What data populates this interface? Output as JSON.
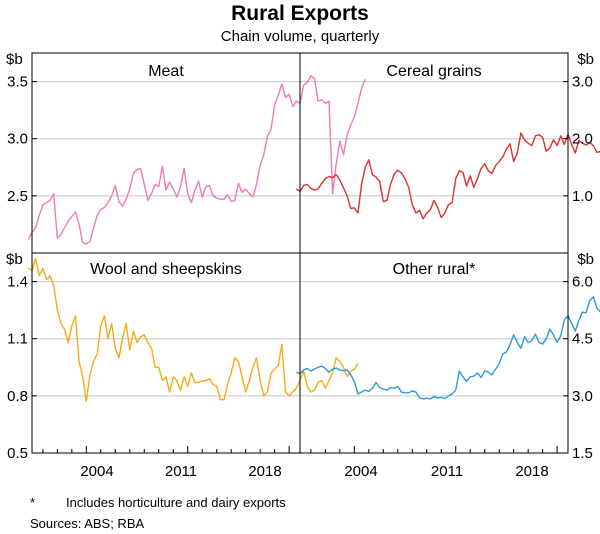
{
  "title": "Rural Exports",
  "subtitle": "Chain volume, quarterly",
  "footnote_marker": "*",
  "footnote": "Includes horticulture and dairy exports",
  "sources": "Sources: ABS; RBA",
  "x_tick_labels": [
    "2004",
    "2011",
    "2018"
  ],
  "colors": {
    "meat": "#f07ab8",
    "cereal": "#e0312e",
    "wool": "#f5aa16",
    "other": "#2b9bd6"
  },
  "chart_data": [
    {
      "type": "line",
      "title": "Meat",
      "unit": "$b",
      "axis_side": "left",
      "ylim": [
        2.0,
        3.75
      ],
      "yticks": [
        2.5,
        3.0,
        3.5
      ],
      "ytick_labels": [
        "2.5",
        "3.0",
        "3.5"
      ],
      "x_start": 2000.0,
      "x_step": 0.25,
      "series": [
        {
          "values": [
            2.12,
            2.18,
            2.22,
            2.33,
            2.42,
            2.44,
            2.46,
            2.52,
            2.13,
            2.16,
            2.22,
            2.28,
            2.32,
            2.36,
            2.25,
            2.09,
            2.08,
            2.1,
            2.22,
            2.33,
            2.38,
            2.4,
            2.44,
            2.5,
            2.59,
            2.45,
            2.41,
            2.47,
            2.56,
            2.7,
            2.73,
            2.74,
            2.6,
            2.46,
            2.52,
            2.6,
            2.58,
            2.76,
            2.55,
            2.62,
            2.56,
            2.49,
            2.58,
            2.74,
            2.52,
            2.44,
            2.55,
            2.63,
            2.49,
            2.58,
            2.59,
            2.5,
            2.48,
            2.47,
            2.47,
            2.51,
            2.45,
            2.46,
            2.61,
            2.53,
            2.56,
            2.52,
            2.49,
            2.6,
            2.77,
            2.86,
            3.02,
            3.08,
            3.3,
            3.38,
            3.48,
            3.36,
            3.39,
            3.28,
            3.33,
            3.31,
            3.47,
            3.49,
            3.55,
            3.53,
            3.33,
            3.34,
            3.31,
            3.33,
            2.52,
            2.78,
            2.98,
            2.86,
            3.03,
            3.12,
            3.19,
            3.31,
            3.44,
            3.52
          ]
        }
      ],
      "xlim": [
        2000.25,
        2018.75
      ]
    },
    {
      "type": "line",
      "title": "Cereal grains",
      "unit": "$b",
      "axis_side": "right",
      "ylim": [
        0.0,
        3.5
      ],
      "yticks": [
        1.0,
        2.0,
        3.0
      ],
      "ytick_labels": [
        "1.0",
        "2.0",
        "3.0"
      ],
      "x_start": 2000.0,
      "x_step": 0.25,
      "series": [
        {
          "values": [
            1.12,
            1.08,
            1.18,
            1.2,
            1.13,
            1.1,
            1.12,
            1.22,
            1.3,
            1.34,
            1.32,
            1.37,
            1.28,
            1.14,
            1.0,
            0.78,
            0.79,
            0.7,
            1.2,
            1.5,
            1.63,
            1.37,
            1.33,
            1.25,
            0.9,
            0.92,
            1.2,
            1.38,
            1.45,
            1.4,
            1.3,
            1.15,
            0.85,
            0.7,
            0.75,
            0.6,
            0.7,
            0.76,
            0.92,
            0.8,
            0.62,
            0.7,
            0.85,
            0.88,
            1.3,
            1.44,
            1.41,
            1.17,
            1.35,
            1.15,
            1.3,
            1.48,
            1.56,
            1.44,
            1.39,
            1.53,
            1.6,
            1.68,
            1.82,
            1.91,
            1.6,
            1.75,
            2.1,
            1.98,
            1.92,
            1.88,
            2.05,
            2.07,
            2.02,
            1.78,
            1.84,
            1.98,
            1.88,
            2.05,
            1.9,
            2.08,
            1.9,
            1.75,
            1.97,
            1.92,
            1.89,
            1.93,
            1.88,
            1.76,
            1.78,
            1.85,
            2.18,
            2.26,
            2.75,
            2.6,
            2.12,
            1.95,
            1.7,
            1.85,
            1.6,
            1.4
          ]
        }
      ],
      "xlim": [
        2000.25,
        2018.75
      ]
    },
    {
      "type": "line",
      "title": "Wool and sheepskins",
      "unit": "$b",
      "axis_side": "left",
      "ylim": [
        0.5,
        1.55
      ],
      "yticks": [
        0.5,
        0.8,
        1.1,
        1.4
      ],
      "ytick_labels": [
        "0.5",
        "0.8",
        "1.1",
        "1.4"
      ],
      "x_start": 2000.0,
      "x_step": 0.25,
      "series": [
        {
          "values": [
            1.47,
            1.46,
            1.52,
            1.43,
            1.47,
            1.41,
            1.43,
            1.38,
            1.25,
            1.18,
            1.15,
            1.08,
            1.17,
            1.22,
            0.98,
            0.9,
            0.77,
            0.91,
            0.98,
            1.02,
            1.17,
            1.22,
            1.1,
            1.18,
            1.05,
            1.0,
            1.1,
            1.18,
            1.04,
            1.14,
            1.08,
            1.11,
            1.12,
            1.08,
            1.05,
            0.95,
            0.95,
            0.88,
            0.9,
            0.82,
            0.9,
            0.88,
            0.83,
            0.9,
            0.85,
            0.92,
            0.87,
            0.87,
            0.88,
            0.88,
            0.89,
            0.86,
            0.85,
            0.78,
            0.78,
            0.86,
            0.92,
            1.0,
            0.98,
            0.9,
            0.82,
            0.88,
            0.95,
            1.0,
            0.88,
            0.8,
            0.82,
            0.92,
            0.94,
            0.96,
            1.07,
            0.82,
            0.8,
            0.82,
            0.84,
            0.88,
            0.93,
            0.85,
            0.82,
            0.83,
            0.87,
            0.88,
            0.84,
            0.88,
            0.92,
            1.0,
            0.98,
            0.95,
            0.9,
            0.93,
            0.94,
            0.97
          ]
        }
      ],
      "xlim": [
        2000.25,
        2018.75
      ]
    },
    {
      "type": "line",
      "title": "Other rural*",
      "unit": "$b",
      "axis_side": "right",
      "ylim": [
        1.5,
        6.75
      ],
      "yticks": [
        1.5,
        3.0,
        4.5,
        6.0
      ],
      "ytick_labels": [
        "1.5",
        "3.0",
        "4.5",
        "6.0"
      ],
      "x_start": 2000.0,
      "x_step": 0.25,
      "series": [
        {
          "values": [
            3.62,
            3.58,
            3.68,
            3.72,
            3.65,
            3.7,
            3.75,
            3.78,
            3.72,
            3.62,
            3.7,
            3.73,
            3.68,
            3.66,
            3.68,
            3.55,
            3.38,
            3.05,
            3.1,
            3.15,
            3.12,
            3.2,
            3.35,
            3.22,
            3.18,
            3.15,
            3.22,
            3.2,
            3.25,
            3.1,
            3.08,
            3.08,
            3.13,
            3.1,
            2.95,
            2.92,
            2.94,
            2.92,
            2.98,
            2.95,
            2.96,
            2.93,
            3.0,
            3.05,
            3.15,
            3.65,
            3.5,
            3.38,
            3.5,
            3.52,
            3.6,
            3.48,
            3.66,
            3.62,
            3.55,
            3.7,
            3.85,
            4.1,
            4.15,
            4.35,
            4.6,
            4.4,
            4.25,
            4.55,
            4.4,
            4.45,
            4.62,
            4.4,
            4.36,
            4.5,
            4.75,
            4.6,
            4.4,
            4.58,
            5.0,
            5.1,
            4.9,
            4.7,
            4.98,
            5.2,
            5.18,
            5.5,
            5.6,
            5.3,
            5.2,
            5.55,
            5.8,
            6.1,
            6.4,
            6.3,
            6.2,
            6.6,
            6.35,
            5.7,
            5.55,
            5.7,
            5.9,
            6.1
          ]
        }
      ],
      "xlim": [
        2000.25,
        2018.75
      ]
    }
  ]
}
